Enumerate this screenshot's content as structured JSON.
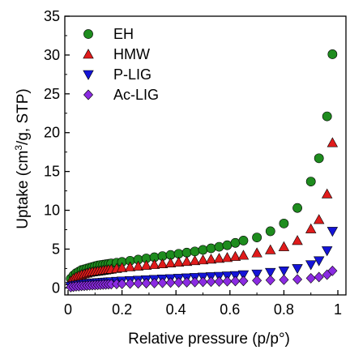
{
  "chart_data": {
    "type": "scatter",
    "title": "",
    "xlabel": "Relative pressure (p/p°)",
    "ylabel_parts": [
      "Uptake (cm",
      "3",
      "/g, STP)"
    ],
    "xlim": [
      0,
      1
    ],
    "ylim": [
      0,
      35
    ],
    "x_ticks": [
      0,
      0.2,
      0.4,
      0.6,
      0.8,
      1
    ],
    "x_tick_labels": [
      "0",
      "0.2",
      "0.4",
      "0.6",
      "0.8",
      "1"
    ],
    "y_ticks": [
      0,
      5,
      10,
      15,
      20,
      25,
      30,
      35
    ],
    "y_tick_labels": [
      "0",
      "5",
      "10",
      "15",
      "20",
      "25",
      "30",
      "35"
    ],
    "grid": false,
    "legend_position": "top-left",
    "series": [
      {
        "name": "EH",
        "marker": "circle",
        "color": "#1e8c1e",
        "x": [
          0.01,
          0.02,
          0.03,
          0.04,
          0.05,
          0.06,
          0.07,
          0.08,
          0.09,
          0.1,
          0.11,
          0.12,
          0.13,
          0.14,
          0.15,
          0.16,
          0.18,
          0.2,
          0.23,
          0.26,
          0.29,
          0.32,
          0.35,
          0.38,
          0.41,
          0.44,
          0.47,
          0.5,
          0.53,
          0.56,
          0.59,
          0.62,
          0.65,
          0.7,
          0.75,
          0.8,
          0.85,
          0.9,
          0.93,
          0.96,
          0.98
        ],
        "y": [
          1.2,
          1.6,
          1.9,
          2.1,
          2.3,
          2.4,
          2.5,
          2.6,
          2.7,
          2.8,
          2.9,
          2.95,
          3.0,
          3.05,
          3.1,
          3.15,
          3.25,
          3.35,
          3.5,
          3.65,
          3.8,
          3.95,
          4.1,
          4.25,
          4.4,
          4.55,
          4.7,
          4.9,
          5.1,
          5.3,
          5.5,
          5.8,
          6.1,
          6.5,
          7.3,
          8.3,
          10.3,
          13.7,
          16.7,
          22.1,
          30.1
        ]
      },
      {
        "name": "HMW",
        "marker": "triangle-up",
        "color": "#e01b1b",
        "x": [
          0.01,
          0.02,
          0.03,
          0.04,
          0.05,
          0.06,
          0.07,
          0.08,
          0.09,
          0.1,
          0.11,
          0.12,
          0.13,
          0.14,
          0.15,
          0.16,
          0.18,
          0.2,
          0.23,
          0.26,
          0.29,
          0.32,
          0.35,
          0.38,
          0.41,
          0.44,
          0.47,
          0.5,
          0.53,
          0.56,
          0.59,
          0.62,
          0.65,
          0.7,
          0.75,
          0.8,
          0.85,
          0.9,
          0.93,
          0.96,
          0.98
        ],
        "y": [
          0.9,
          1.2,
          1.4,
          1.55,
          1.7,
          1.8,
          1.9,
          2.0,
          2.05,
          2.1,
          2.15,
          2.2,
          2.25,
          2.3,
          2.35,
          2.4,
          2.5,
          2.6,
          2.7,
          2.8,
          2.9,
          3.0,
          3.1,
          3.2,
          3.3,
          3.4,
          3.5,
          3.6,
          3.7,
          3.8,
          3.9,
          4.05,
          4.2,
          4.5,
          4.9,
          5.3,
          6.1,
          7.6,
          8.8,
          12.1,
          18.7
        ]
      },
      {
        "name": "P-LIG",
        "marker": "triangle-down",
        "color": "#1414d8",
        "x": [
          0.01,
          0.02,
          0.03,
          0.04,
          0.05,
          0.06,
          0.07,
          0.08,
          0.09,
          0.1,
          0.11,
          0.12,
          0.13,
          0.14,
          0.15,
          0.16,
          0.18,
          0.2,
          0.23,
          0.26,
          0.29,
          0.32,
          0.35,
          0.38,
          0.41,
          0.44,
          0.47,
          0.5,
          0.53,
          0.56,
          0.59,
          0.62,
          0.65,
          0.7,
          0.75,
          0.8,
          0.85,
          0.9,
          0.93,
          0.96,
          0.98
        ],
        "y": [
          0.2,
          0.3,
          0.35,
          0.4,
          0.45,
          0.5,
          0.55,
          0.58,
          0.62,
          0.65,
          0.68,
          0.7,
          0.72,
          0.75,
          0.78,
          0.8,
          0.85,
          0.9,
          0.95,
          1.0,
          1.05,
          1.1,
          1.15,
          1.2,
          1.25,
          1.3,
          1.35,
          1.4,
          1.45,
          1.5,
          1.55,
          1.6,
          1.7,
          1.8,
          2.0,
          2.2,
          2.5,
          3.0,
          3.5,
          4.8,
          7.3
        ]
      },
      {
        "name": "Ac-LIG",
        "marker": "diamond",
        "color": "#8b2be2",
        "x": [
          0.01,
          0.02,
          0.03,
          0.04,
          0.05,
          0.06,
          0.07,
          0.08,
          0.09,
          0.1,
          0.11,
          0.12,
          0.13,
          0.14,
          0.15,
          0.16,
          0.18,
          0.2,
          0.23,
          0.26,
          0.29,
          0.32,
          0.35,
          0.38,
          0.41,
          0.44,
          0.47,
          0.5,
          0.53,
          0.56,
          0.59,
          0.62,
          0.65,
          0.7,
          0.75,
          0.8,
          0.85,
          0.9,
          0.93,
          0.96,
          0.98
        ],
        "y": [
          0.1,
          0.15,
          0.2,
          0.22,
          0.25,
          0.27,
          0.3,
          0.32,
          0.34,
          0.36,
          0.38,
          0.4,
          0.42,
          0.44,
          0.46,
          0.48,
          0.5,
          0.52,
          0.55,
          0.58,
          0.6,
          0.62,
          0.65,
          0.68,
          0.7,
          0.72,
          0.75,
          0.78,
          0.8,
          0.82,
          0.85,
          0.88,
          0.9,
          0.95,
          1.0,
          1.05,
          1.1,
          1.25,
          1.4,
          1.7,
          2.2
        ]
      }
    ]
  }
}
